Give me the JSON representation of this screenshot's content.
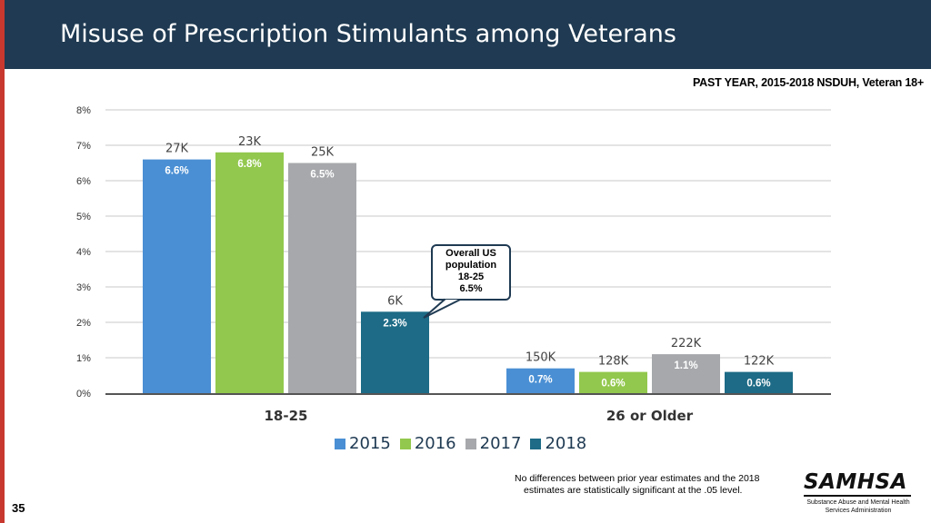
{
  "slide": {
    "title": "Misuse of Prescription Stimulants among Veterans",
    "subtitle": "PAST YEAR, 2015-2018 NSDUH, Veteran 18+",
    "slide_number": "35",
    "footnote_line1": "No differences between prior year estimates and the 2018",
    "footnote_line2": "estimates are statistically significant at the .05 level.",
    "logo_name": "SAMHSA",
    "logo_sub_line1": "Substance Abuse and Mental Health",
    "logo_sub_line2": "Services Administration",
    "colors": {
      "header": "#1f3a52",
      "accent_bar": "#c8382e"
    }
  },
  "callout": {
    "line1": "Overall US",
    "line2": "population",
    "line3": "18-25",
    "line4": "6.5%"
  },
  "chart_data": {
    "type": "bar",
    "title": "Misuse of Prescription Stimulants among Veterans",
    "categories": [
      "18-25",
      "26 or Older"
    ],
    "y_ticks": [
      "0%",
      "1%",
      "2%",
      "3%",
      "4%",
      "5%",
      "6%",
      "7%",
      "8%"
    ],
    "ylim": [
      0,
      8
    ],
    "xlabel": "",
    "ylabel": "",
    "grid": true,
    "legend_position": "bottom",
    "series": [
      {
        "name": "2015",
        "color": "#4a8fd4",
        "values": [
          6.6,
          0.7
        ],
        "labels": [
          "6.6%",
          "0.7%"
        ],
        "counts": [
          "27K",
          "150K"
        ]
      },
      {
        "name": "2016",
        "color": "#92c84d",
        "values": [
          6.8,
          0.6
        ],
        "labels": [
          "6.8%",
          "0.6%"
        ],
        "counts": [
          "23K",
          "128K"
        ]
      },
      {
        "name": "2017",
        "color": "#a6a8ab",
        "values": [
          6.5,
          1.1
        ],
        "labels": [
          "6.5%",
          "1.1%"
        ],
        "counts": [
          "25K",
          "222K"
        ]
      },
      {
        "name": "2018",
        "color": "#1d6b86",
        "values": [
          2.3,
          0.6
        ],
        "labels": [
          "2.3%",
          "0.6%"
        ],
        "counts": [
          "6K",
          "122K"
        ]
      }
    ]
  }
}
